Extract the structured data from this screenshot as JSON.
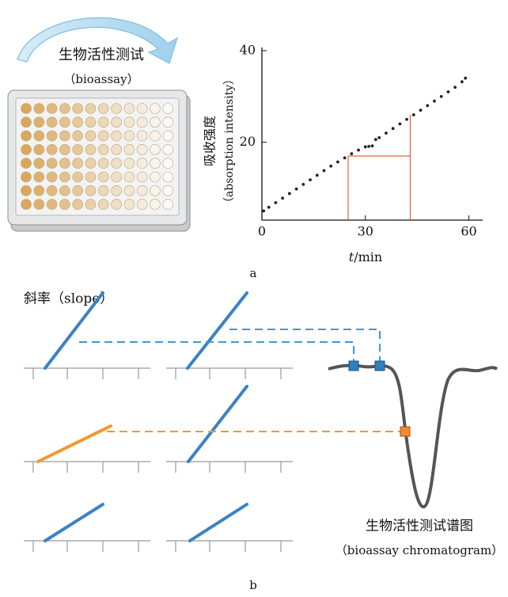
{
  "panel_a": {
    "label": "a",
    "bioassay_cn": "生物活性测试",
    "bioassay_en": "（bioassay）",
    "chart": {
      "type": "scatter",
      "ylabel_cn": "吸收强度",
      "ylabel_en": "（absorption intensity）",
      "xlabel_var": "t",
      "xlabel_unit": "/min",
      "xlim": [
        0,
        64
      ],
      "ylim": [
        3,
        40
      ],
      "xticks": [
        0,
        30,
        60
      ],
      "yticks": [
        20,
        40
      ],
      "color": "#222222",
      "x": [
        0.5,
        2,
        4,
        6,
        8,
        10,
        12,
        14,
        16,
        18,
        20,
        22,
        24,
        26,
        28,
        30,
        31,
        32,
        33,
        34,
        36,
        38,
        40,
        42,
        44,
        46,
        48,
        50,
        52,
        54,
        56,
        58,
        59
      ],
      "values": [
        5,
        5.8,
        6.8,
        7.8,
        8.8,
        9.8,
        10.8,
        11.8,
        12.8,
        13.8,
        14.8,
        15.7,
        16.6,
        17.5,
        18.3,
        19,
        19.1,
        19.2,
        20.6,
        21,
        22,
        23,
        24,
        25,
        26,
        27,
        28,
        29,
        30,
        31,
        32,
        33.2,
        34
      ],
      "guide": {
        "color": "#e8603c",
        "x1": 25,
        "x2": 43,
        "y1": 17,
        "y2": 26
      }
    }
  },
  "panel_b": {
    "label": "b",
    "slope_label": "斜率（slope）",
    "chromatogram_cn": "生物活性测试谱图",
    "chromatogram_en": "（bioassay chromatogram）"
  }
}
